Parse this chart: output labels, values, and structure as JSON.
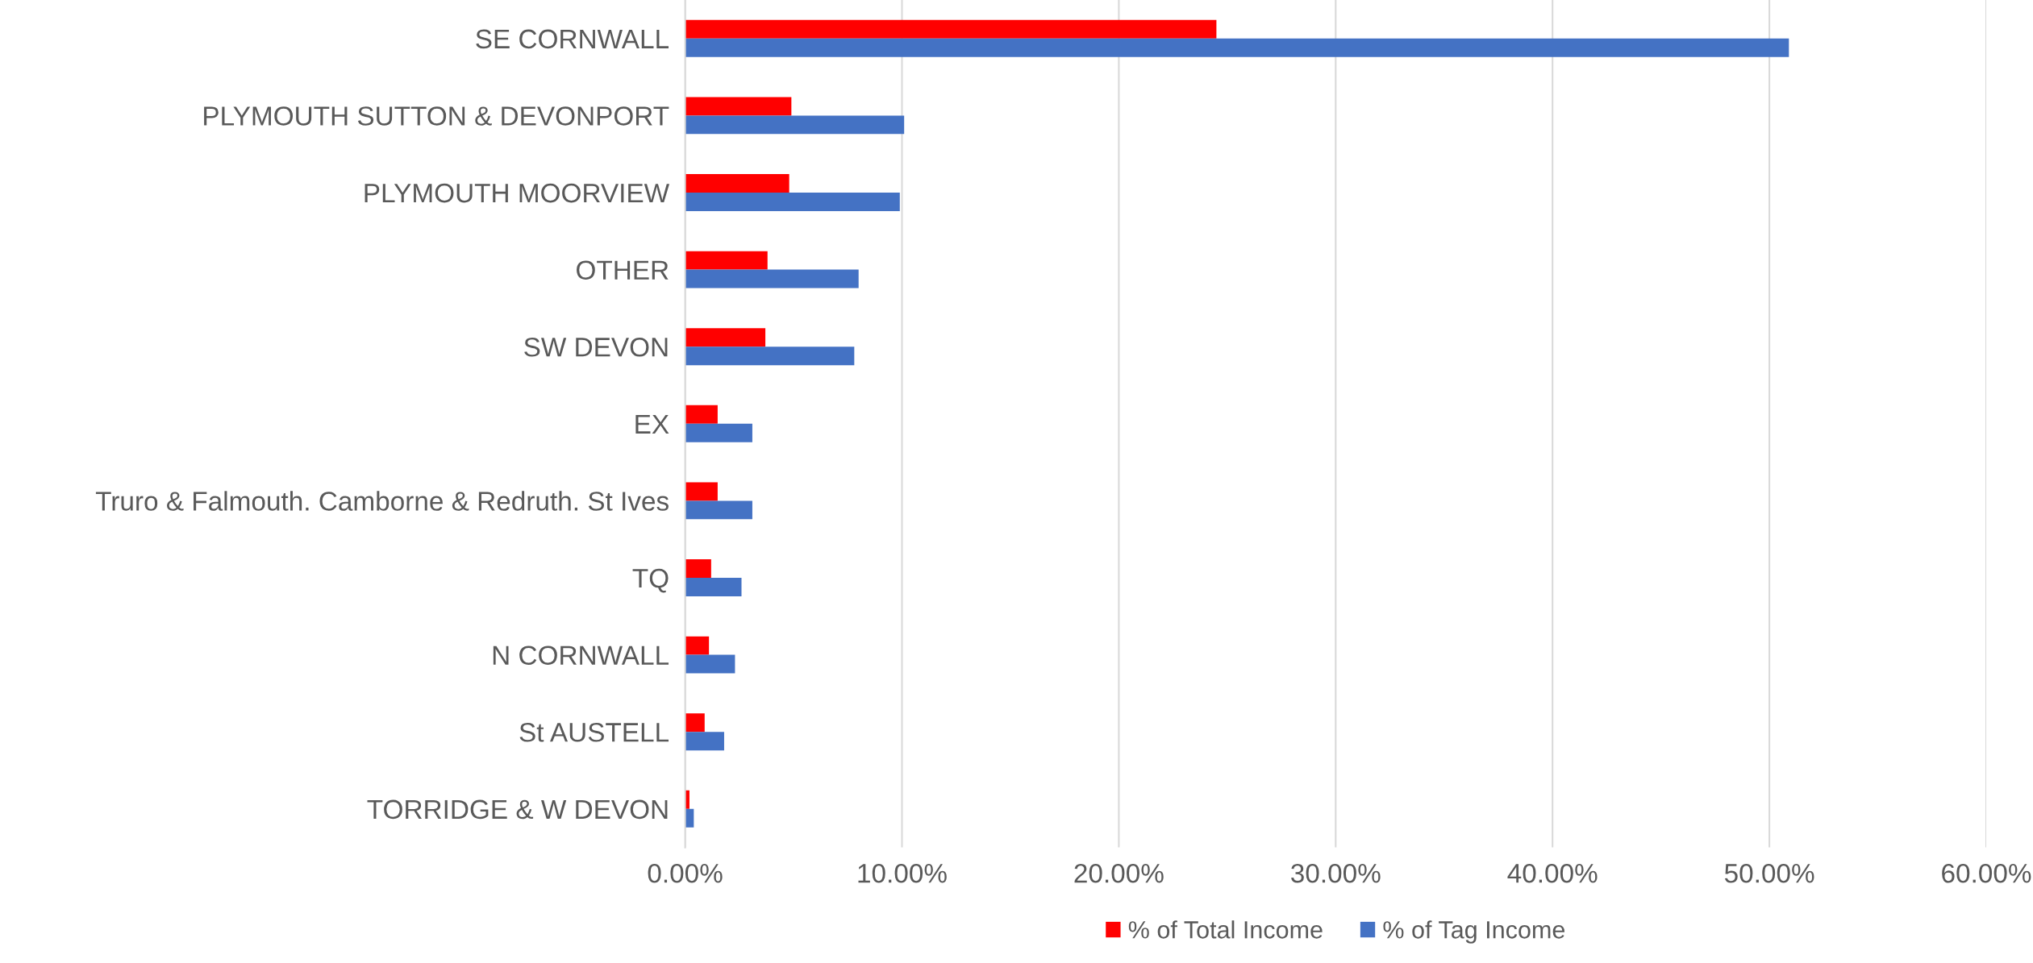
{
  "chart_data": {
    "type": "bar",
    "orientation": "horizontal",
    "categories": [
      "SE CORNWALL",
      "PLYMOUTH SUTTON & DEVONPORT",
      "PLYMOUTH MOORVIEW",
      "OTHER",
      "SW DEVON",
      "EX",
      "Truro & Falmouth. Camborne & Redruth. St Ives",
      "TQ",
      "N CORNWALL",
      "St AUSTELL",
      "TORRIDGE & W DEVON"
    ],
    "series": [
      {
        "name": "% of Total Income",
        "color": "#ff0000",
        "values": [
          24.5,
          4.9,
          4.8,
          3.8,
          3.7,
          1.5,
          1.5,
          1.2,
          1.1,
          0.9,
          0.2
        ]
      },
      {
        "name": "% of Tag Income",
        "color": "#4472c4",
        "values": [
          50.9,
          10.1,
          9.9,
          8.0,
          7.8,
          3.1,
          3.1,
          2.6,
          2.3,
          1.8,
          0.4
        ]
      }
    ],
    "xlim": [
      0,
      60
    ],
    "xticks": [
      {
        "value": 0,
        "label": "0.00%"
      },
      {
        "value": 10,
        "label": "10.00%"
      },
      {
        "value": 20,
        "label": "20.00%"
      },
      {
        "value": 30,
        "label": "30.00%"
      },
      {
        "value": 40,
        "label": "40.00%"
      },
      {
        "value": 50,
        "label": "50.00%"
      },
      {
        "value": 60,
        "label": "60.00%"
      }
    ],
    "grid": "x",
    "legend": "bottom"
  }
}
